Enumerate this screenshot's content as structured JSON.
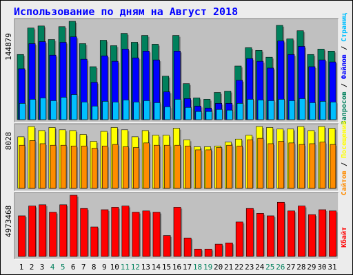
{
  "title": "Использование по дням на Август 2018",
  "colors": {
    "background": "#ececec",
    "panel": "#c0c0c0",
    "title": "#0000ff",
    "hits": "#00805c",
    "files": "#0000ff",
    "pages": "#00bfff",
    "visits": "#ffff00",
    "sites": "#ff8c00",
    "kbytes": "#ff0000",
    "weekend": "#00805c",
    "weekday": "#000000"
  },
  "chart_data": [
    {
      "type": "bar",
      "name": "requests-panel",
      "categories": [
        "1",
        "2",
        "3",
        "4",
        "5",
        "6",
        "7",
        "8",
        "9",
        "10",
        "11",
        "12",
        "13",
        "14",
        "15",
        "16",
        "17",
        "18",
        "19",
        "20",
        "21",
        "22",
        "23",
        "24",
        "25",
        "26",
        "27",
        "28",
        "29",
        "30",
        "31"
      ],
      "weekend_days": [
        "4",
        "5",
        "11",
        "12",
        "18",
        "19",
        "25",
        "26"
      ],
      "ymax_label": "144879",
      "ylim": [
        0,
        144879
      ],
      "series": [
        {
          "name": "Запросов",
          "color_key": "hits",
          "values": [
            96000,
            135000,
            138000,
            118000,
            137000,
            144879,
            112000,
            78000,
            117000,
            109000,
            127000,
            114000,
            124000,
            111000,
            64000,
            124000,
            53000,
            32000,
            30000,
            40000,
            42000,
            79000,
            106000,
            102000,
            92000,
            139000,
            119000,
            131000,
            96000,
            104000,
            101000
          ]
        },
        {
          "name": "Файлов",
          "color_key": "files",
          "values": [
            75000,
            112000,
            115000,
            95000,
            114000,
            122000,
            89000,
            55000,
            94000,
            86000,
            104000,
            91000,
            101000,
            88000,
            41000,
            101000,
            31000,
            20000,
            17000,
            24000,
            24000,
            58000,
            90000,
            86000,
            76000,
            116000,
            96000,
            108000,
            78000,
            88000,
            85000
          ]
        },
        {
          "name": "Страниц",
          "color_key": "pages",
          "values": [
            24000,
            30000,
            32000,
            28000,
            33000,
            37000,
            26000,
            20000,
            27000,
            26000,
            29000,
            26000,
            28000,
            25000,
            19000,
            30000,
            18000,
            12000,
            12000,
            15000,
            14000,
            24000,
            30000,
            29000,
            28000,
            30000,
            28000,
            31000,
            25000,
            27000,
            26000
          ]
        }
      ]
    },
    {
      "type": "bar",
      "name": "visits-panel",
      "categories": [
        "1",
        "2",
        "3",
        "4",
        "5",
        "6",
        "7",
        "8",
        "9",
        "10",
        "11",
        "12",
        "13",
        "14",
        "15",
        "16",
        "17",
        "18",
        "19",
        "20",
        "21",
        "22",
        "23",
        "24",
        "25",
        "26",
        "27",
        "28",
        "29",
        "30",
        "31"
      ],
      "ymax_label": "8028",
      "ylim": [
        0,
        8028
      ],
      "series": [
        {
          "name": "Посещений",
          "color_key": "visits",
          "values": [
            6700,
            8028,
            7500,
            7900,
            7600,
            7500,
            7000,
            6100,
            7400,
            7900,
            7600,
            6700,
            7500,
            6900,
            6900,
            7800,
            6300,
            5400,
            5400,
            5500,
            6000,
            6400,
            6900,
            8028,
            7900,
            7700,
            7700,
            8028,
            7500,
            8028,
            7800
          ]
        },
        {
          "name": "Сайтов",
          "color_key": "sites",
          "values": [
            5600,
            6200,
            5800,
            5600,
            5600,
            5500,
            5500,
            5200,
            5500,
            5700,
            5400,
            5300,
            5900,
            5600,
            5600,
            5600,
            5500,
            5000,
            5000,
            5300,
            5600,
            5500,
            6300,
            6500,
            5800,
            6100,
            5900,
            5700,
            5800,
            6000,
            5700
          ]
        }
      ]
    },
    {
      "type": "bar",
      "name": "kbytes-panel",
      "categories": [
        "1",
        "2",
        "3",
        "4",
        "5",
        "6",
        "7",
        "8",
        "9",
        "10",
        "11",
        "12",
        "13",
        "14",
        "15",
        "16",
        "17",
        "18",
        "19",
        "20",
        "21",
        "22",
        "23",
        "24",
        "25",
        "26",
        "27",
        "28",
        "29",
        "30",
        "31"
      ],
      "ymax_label": "4973468",
      "ylim": [
        0,
        4973468
      ],
      "series": [
        {
          "name": "Кбайт",
          "color_key": "kbytes",
          "values": [
            3300000,
            4100000,
            4200000,
            3600000,
            4200000,
            4973468,
            3900000,
            2400000,
            3800000,
            4000000,
            4100000,
            3600000,
            3700000,
            3600000,
            1700000,
            4000000,
            1500000,
            600000,
            600000,
            1000000,
            1100000,
            2800000,
            3900000,
            3500000,
            3300000,
            4400000,
            3700000,
            4100000,
            3400000,
            3800000,
            3700000
          ]
        }
      ]
    }
  ],
  "legend_right": {
    "top": [
      {
        "text": "Запросов",
        "color_key": "hits"
      },
      {
        "text": " / ",
        "color_key": "weekday"
      },
      {
        "text": "Файлов",
        "color_key": "files"
      },
      {
        "text": " / ",
        "color_key": "weekday"
      },
      {
        "text": "Страниц",
        "color_key": "pages"
      }
    ],
    "middle": [
      {
        "text": "Сайтов",
        "color_key": "sites"
      },
      {
        "text": " / ",
        "color_key": "weekday"
      },
      {
        "text": "Посещений",
        "color_key": "visits"
      }
    ],
    "bottom": [
      {
        "text": "Кбайт",
        "color_key": "kbytes"
      }
    ]
  }
}
